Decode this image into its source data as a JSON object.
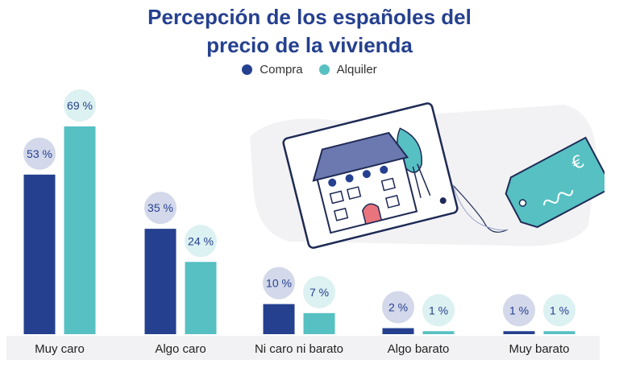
{
  "title": [
    "Percepción de los españoles del",
    "precio de la vivienda"
  ],
  "legend": [
    {
      "label": "Compra",
      "color": "#25408f"
    },
    {
      "label": "Alquiler",
      "color": "#57c0c2"
    }
  ],
  "chart_data": {
    "type": "bar",
    "title": "Percepción de los españoles del precio de la vivienda",
    "categories": [
      "Muy caro",
      "Algo caro",
      "Ni caro ni barato",
      "Algo barato",
      "Muy barato"
    ],
    "series": [
      {
        "name": "Compra",
        "values": [
          53,
          35,
          10,
          2,
          1
        ],
        "labels": [
          "53 %",
          "35 %",
          "10 %",
          "2 %",
          "1 %"
        ],
        "color": "#25408f",
        "label_bg": "#d3d8ea"
      },
      {
        "name": "Alquiler",
        "values": [
          69,
          24,
          7,
          1,
          1
        ],
        "labels": [
          "69 %",
          "24 %",
          "7 %",
          "1 %",
          "1 %"
        ],
        "color": "#57c0c2",
        "label_bg": "#dcf1f1"
      }
    ],
    "ylim": [
      0,
      69
    ],
    "xlabel": "",
    "ylabel": ""
  }
}
